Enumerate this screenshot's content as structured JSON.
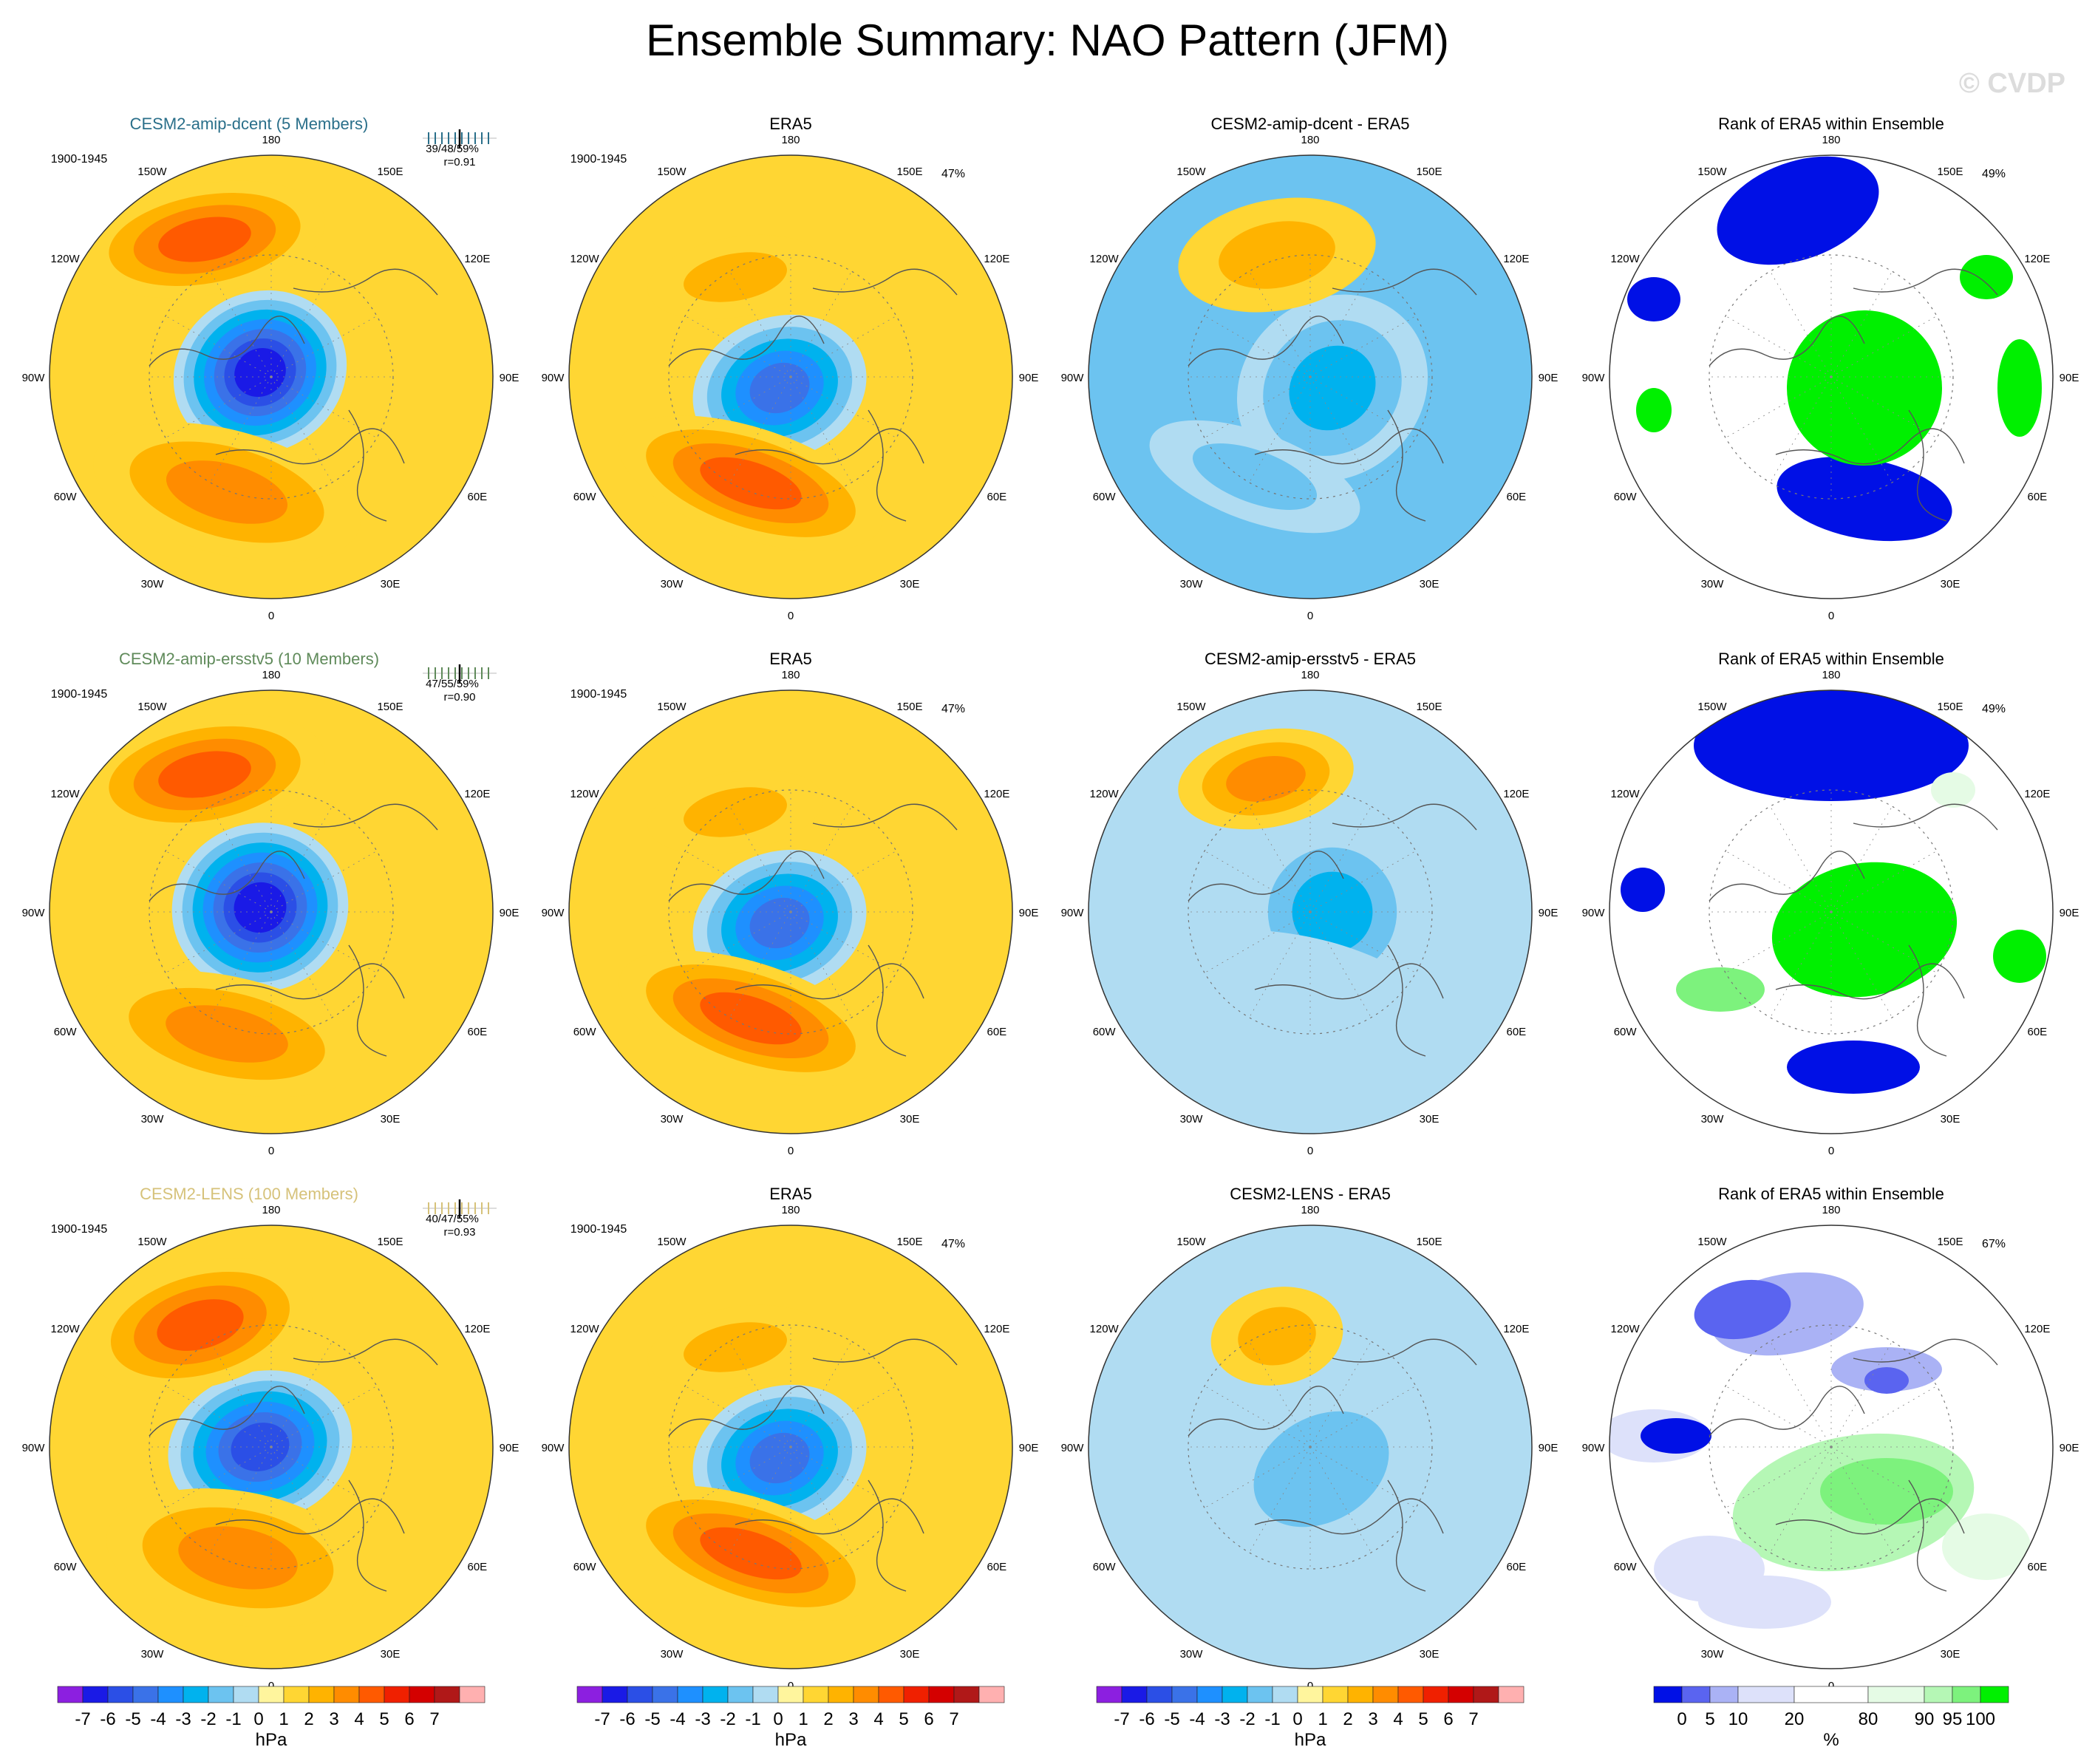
{
  "title": "Ensemble Summary: NAO Pattern (JFM)",
  "watermark": "© CVDP",
  "lon_labels": [
    "180",
    "150E",
    "120E",
    "90E",
    "60E",
    "30E",
    "0",
    "30W",
    "60W",
    "90W",
    "120W",
    "150W"
  ],
  "colors": {
    "hpa_levels": [
      "#8c1fe0",
      "#1a1ae6",
      "#2b4fe6",
      "#3a72e8",
      "#1e90ff",
      "#00b2ee",
      "#6cc3f0",
      "#b0dcf2",
      "#fff59d",
      "#ffd633",
      "#ffb300",
      "#ff8c00",
      "#ff5a00",
      "#f02000",
      "#d40000",
      "#b01818",
      "#ffb0b0"
    ],
    "rank_levels": [
      "#0010e6",
      "#5a64f0",
      "#aab2f5",
      "#dde1fa",
      "#ffffff",
      "#e5fbe5",
      "#b5f7b5",
      "#7df27d",
      "#00f000"
    ],
    "model_title": [
      "#2a6f8a",
      "#5f8a5a",
      "#d6c27a"
    ]
  },
  "rows": [
    {
      "model": {
        "title": "CESM2-amip-dcent (5 Members)",
        "period": "1900-1945",
        "stats": "39/48/59%",
        "r": "r=0.91"
      },
      "era5": {
        "title": "ERA5",
        "period": "1900-1945",
        "pct": "47%"
      },
      "diff": {
        "title": "CESM2-amip-dcent - ERA5"
      },
      "rank": {
        "title": "Rank of ERA5 within Ensemble",
        "pct": "49%"
      }
    },
    {
      "model": {
        "title": "CESM2-amip-ersstv5 (10 Members)",
        "period": "1900-1945",
        "stats": "47/55/59%",
        "r": "r=0.90"
      },
      "era5": {
        "title": "ERA5",
        "period": "1900-1945",
        "pct": "47%"
      },
      "diff": {
        "title": "CESM2-amip-ersstv5 - ERA5"
      },
      "rank": {
        "title": "Rank of ERA5 within Ensemble",
        "pct": "49%"
      }
    },
    {
      "model": {
        "title": "CESM2-LENS (100 Members)",
        "period": "1900-1945",
        "stats": "40/47/55%",
        "r": "r=0.93"
      },
      "era5": {
        "title": "ERA5",
        "period": "1900-1945",
        "pct": "47%"
      },
      "diff": {
        "title": "CESM2-LENS - ERA5"
      },
      "rank": {
        "title": "Rank of ERA5 within Ensemble",
        "pct": "67%"
      }
    }
  ],
  "chart_data": {
    "type": "heatmap",
    "title": "Ensemble Summary: NAO Pattern (JFM)",
    "projection": "polar stereographic, northern hemisphere",
    "columns": [
      "model ensemble mean",
      "ERA5",
      "model - ERA5",
      "Rank of ERA5 within Ensemble"
    ],
    "hpa_colorbar": {
      "ticks": [
        "-7",
        "-6",
        "-5",
        "-4",
        "-3",
        "-2",
        "-1",
        "0",
        "1",
        "2",
        "3",
        "4",
        "5",
        "6",
        "7"
      ],
      "units": "hPa"
    },
    "rank_colorbar": {
      "ticks": [
        "0",
        "5",
        "10",
        "20",
        "80",
        "90",
        "95",
        "100"
      ],
      "units": "%"
    },
    "fields": [
      {
        "panel": "CESM2-amip-dcent",
        "pacific_center_hpa": 4,
        "arctic_center_hpa": -7,
        "atlantic_center_hpa": 3
      },
      {
        "panel": "ERA5",
        "pacific_center_hpa": 2,
        "arctic_center_hpa": -5,
        "atlantic_center_hpa": 4
      },
      {
        "panel": "CESM2-amip-dcent - ERA5",
        "pacific_center_hpa": 2,
        "arctic_center_hpa": -3,
        "atlantic_center_hpa": -2
      },
      {
        "panel": "CESM2-amip-ersstv5",
        "pacific_center_hpa": 4,
        "arctic_center_hpa": -7,
        "atlantic_center_hpa": 3
      },
      {
        "panel": "CESM2-amip-ersstv5 - ERA5",
        "pacific_center_hpa": 3,
        "arctic_center_hpa": -3,
        "atlantic_center_hpa": -1
      },
      {
        "panel": "CESM2-LENS",
        "pacific_center_hpa": 4,
        "arctic_center_hpa": -6,
        "atlantic_center_hpa": 3
      },
      {
        "panel": "CESM2-LENS - ERA5",
        "pacific_center_hpa": 2,
        "arctic_center_hpa": -2,
        "atlantic_center_hpa": -1
      }
    ]
  }
}
